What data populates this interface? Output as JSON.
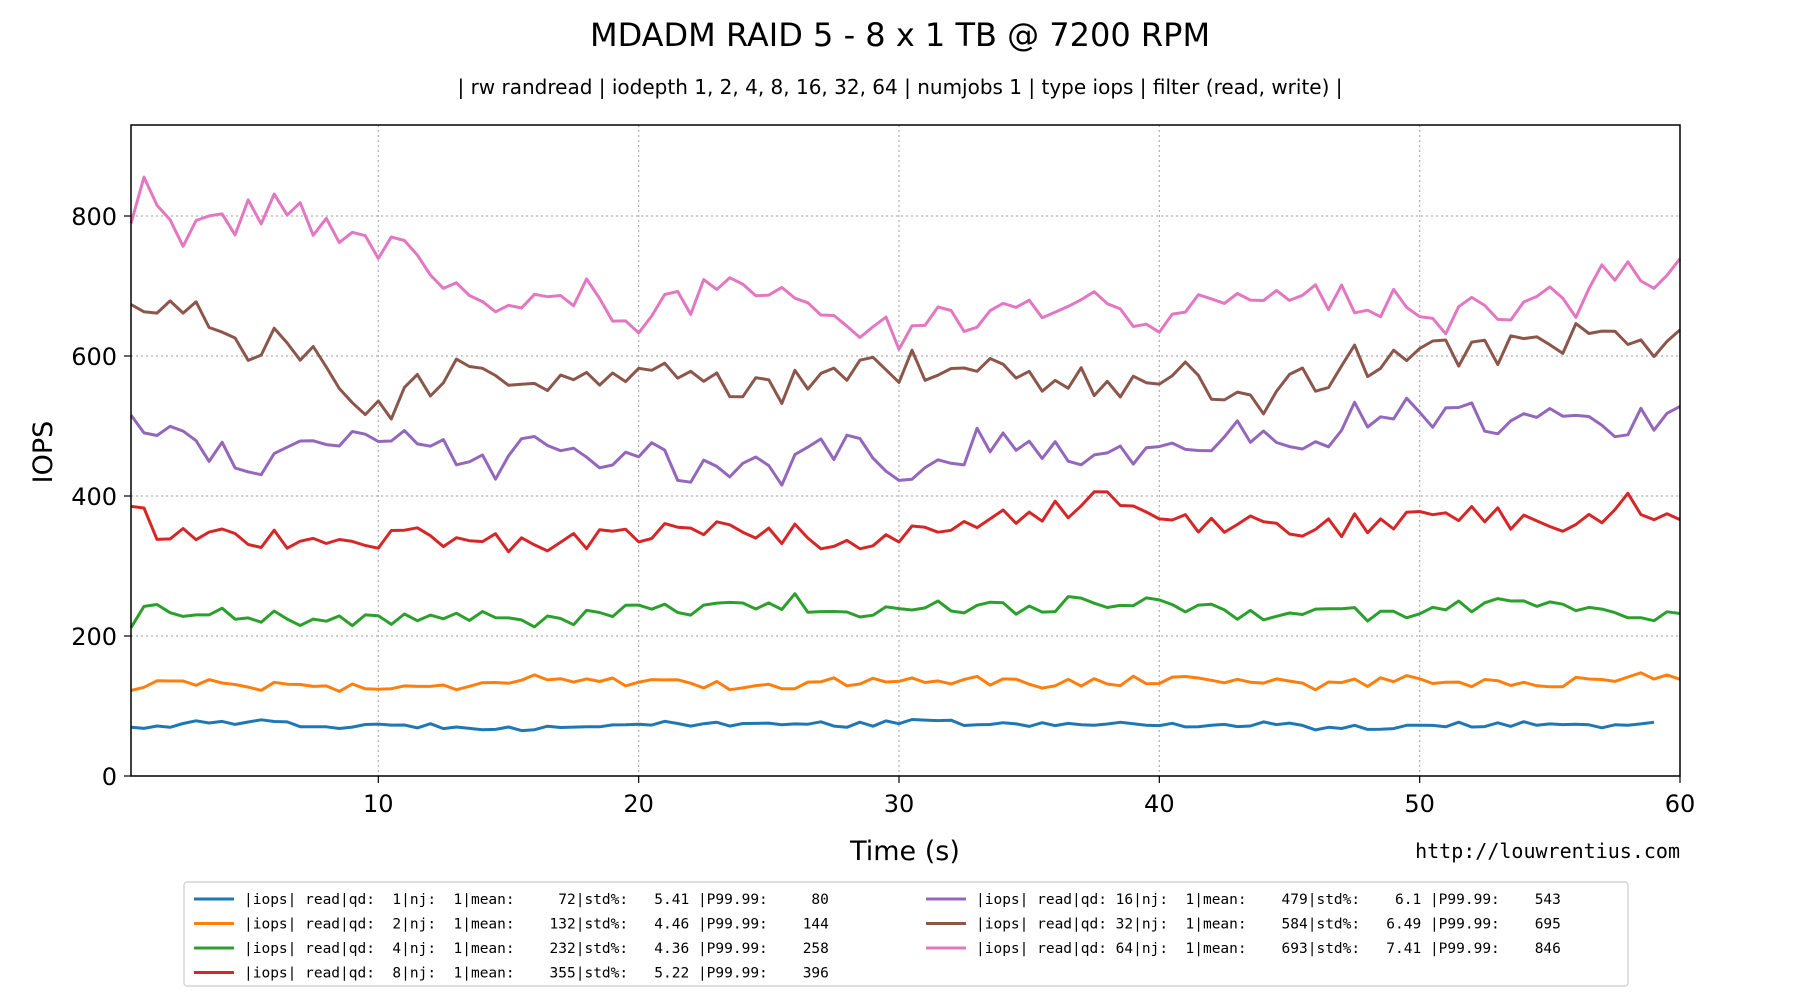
{
  "chart_data": {
    "type": "line",
    "title": "MDADM RAID 5 - 8 x 1 TB @ 7200 RPM",
    "subtitle": "| rw randread | iodepth 1, 2, 4, 8, 16, 32, 64 | numjobs 1 | type iops | filter (read, write) |",
    "xlabel": "Time (s)",
    "ylabel": "IOPS",
    "credit": "http://louwrentius.com",
    "xlim": [
      0.5,
      60
    ],
    "ylim": [
      0,
      930
    ],
    "xticks": [
      10,
      20,
      30,
      40,
      50,
      60
    ],
    "xtick_labels": [
      "10",
      "20",
      "30",
      "40",
      "50",
      "60"
    ],
    "yticks": [
      0,
      200,
      400,
      600,
      800
    ],
    "ytick_labels": [
      "0",
      "200",
      "400",
      "600",
      "800"
    ],
    "grid": true,
    "legend_position": "below",
    "series": [
      {
        "name": "qd1",
        "color": "#1f77b4",
        "legend": "|iops| read|qd:  1|nj:  1|mean:     72|std%:   5.41 |P99.99:     80",
        "anchors": [
          [
            0.5,
            70
          ],
          [
            3,
            75
          ],
          [
            5,
            78
          ],
          [
            8,
            70
          ],
          [
            12,
            72
          ],
          [
            16,
            68
          ],
          [
            20,
            75
          ],
          [
            24,
            72
          ],
          [
            26,
            78
          ],
          [
            28,
            72
          ],
          [
            31,
            78
          ],
          [
            35,
            72
          ],
          [
            38,
            75
          ],
          [
            42,
            72
          ],
          [
            44,
            76
          ],
          [
            46,
            68
          ],
          [
            50,
            72
          ],
          [
            54,
            75
          ],
          [
            57,
            72
          ],
          [
            59.3,
            78
          ]
        ],
        "amp": 4
      },
      {
        "name": "qd2",
        "color": "#ff7f0e",
        "legend": "|iops| read|qd:  2|nj:  1|mean:    132|std%:   4.46 |P99.99:    144",
        "anchors": [
          [
            0.5,
            122
          ],
          [
            2,
            140
          ],
          [
            4,
            130
          ],
          [
            8,
            128
          ],
          [
            12,
            125
          ],
          [
            16,
            142
          ],
          [
            20,
            132
          ],
          [
            24,
            128
          ],
          [
            28,
            135
          ],
          [
            31,
            140
          ],
          [
            35,
            132
          ],
          [
            38,
            135
          ],
          [
            42,
            140
          ],
          [
            46,
            130
          ],
          [
            50,
            138
          ],
          [
            54,
            130
          ],
          [
            58,
            142
          ],
          [
            60,
            138
          ]
        ],
        "amp": 7
      },
      {
        "name": "qd4",
        "color": "#2ca02c",
        "legend": "|iops| read|qd:  4|nj:  1|mean:    232|std%:   4.36 |P99.99:    258",
        "anchors": [
          [
            0.5,
            210
          ],
          [
            1,
            238
          ],
          [
            4,
            235
          ],
          [
            8,
            220
          ],
          [
            12,
            228
          ],
          [
            16,
            222
          ],
          [
            20,
            235
          ],
          [
            24,
            240
          ],
          [
            26,
            250
          ],
          [
            28,
            225
          ],
          [
            30,
            245
          ],
          [
            34,
            240
          ],
          [
            38,
            250
          ],
          [
            42,
            235
          ],
          [
            46,
            232
          ],
          [
            50,
            230
          ],
          [
            52,
            245
          ],
          [
            56,
            245
          ],
          [
            58,
            222
          ],
          [
            60,
            230
          ]
        ],
        "amp": 11
      },
      {
        "name": "qd8",
        "color": "#d62728",
        "legend": "|iops| read|qd:  8|nj:  1|mean:    355|std%:   5.22 |P99.99:    396",
        "anchors": [
          [
            0.5,
            380
          ],
          [
            2,
            340
          ],
          [
            4,
            345
          ],
          [
            8,
            330
          ],
          [
            12,
            345
          ],
          [
            16,
            330
          ],
          [
            20,
            345
          ],
          [
            24,
            355
          ],
          [
            26,
            345
          ],
          [
            29,
            318
          ],
          [
            30,
            345
          ],
          [
            34,
            368
          ],
          [
            38,
            392
          ],
          [
            40,
            360
          ],
          [
            42,
            362
          ],
          [
            46,
            350
          ],
          [
            50,
            375
          ],
          [
            52,
            368
          ],
          [
            56,
            365
          ],
          [
            58,
            390
          ],
          [
            60,
            360
          ]
        ],
        "amp": 17
      },
      {
        "name": "qd16",
        "color": "#9467bd",
        "legend": "|iops| read|qd: 16|nj:  1|mean:    479|std%:    6.1 |P99.99:    543",
        "anchors": [
          [
            0.5,
            505
          ],
          [
            2,
            495
          ],
          [
            4,
            465
          ],
          [
            6,
            440
          ],
          [
            8,
            470
          ],
          [
            12,
            480
          ],
          [
            14,
            440
          ],
          [
            16,
            465
          ],
          [
            20,
            458
          ],
          [
            23,
            430
          ],
          [
            26,
            440
          ],
          [
            28,
            480
          ],
          [
            31,
            420
          ],
          [
            33,
            475
          ],
          [
            36,
            468
          ],
          [
            38,
            450
          ],
          [
            40,
            470
          ],
          [
            42,
            470
          ],
          [
            44,
            498
          ],
          [
            46,
            485
          ],
          [
            48,
            520
          ],
          [
            50,
            515
          ],
          [
            52,
            510
          ],
          [
            56,
            512
          ],
          [
            58,
            505
          ],
          [
            60,
            515
          ]
        ],
        "amp": 24
      },
      {
        "name": "qd32",
        "color": "#8c564b",
        "legend": "|iops| read|qd: 32|nj:  1|mean:    584|std%:   6.49 |P99.99:    695",
        "anchors": [
          [
            0.5,
            658
          ],
          [
            3,
            672
          ],
          [
            4,
            620
          ],
          [
            6,
            615
          ],
          [
            8,
            580
          ],
          [
            10,
            510
          ],
          [
            12,
            560
          ],
          [
            14,
            590
          ],
          [
            16,
            570
          ],
          [
            20,
            570
          ],
          [
            22,
            575
          ],
          [
            24,
            555
          ],
          [
            26,
            560
          ],
          [
            28,
            565
          ],
          [
            30,
            585
          ],
          [
            32,
            575
          ],
          [
            35,
            565
          ],
          [
            38,
            560
          ],
          [
            40,
            570
          ],
          [
            42,
            560
          ],
          [
            44,
            540
          ],
          [
            46,
            570
          ],
          [
            48,
            595
          ],
          [
            50,
            605
          ],
          [
            52,
            595
          ],
          [
            54,
            620
          ],
          [
            56,
            630
          ],
          [
            60,
            618
          ]
        ],
        "amp": 27
      },
      {
        "name": "qd64",
        "color": "#e377c2",
        "legend": "|iops| read|qd: 64|nj:  1|mean:    693|std%:   7.41 |P99.99:    846",
        "anchors": [
          [
            0.5,
            770
          ],
          [
            1,
            838
          ],
          [
            2,
            775
          ],
          [
            4,
            788
          ],
          [
            6,
            805
          ],
          [
            8,
            792
          ],
          [
            10,
            745
          ],
          [
            12,
            740
          ],
          [
            14,
            660
          ],
          [
            16,
            675
          ],
          [
            18,
            690
          ],
          [
            20,
            660
          ],
          [
            22,
            685
          ],
          [
            24,
            690
          ],
          [
            26,
            665
          ],
          [
            28,
            650
          ],
          [
            30,
            635
          ],
          [
            32,
            650
          ],
          [
            34,
            655
          ],
          [
            36,
            670
          ],
          [
            38,
            680
          ],
          [
            40,
            655
          ],
          [
            42,
            665
          ],
          [
            44,
            665
          ],
          [
            46,
            680
          ],
          [
            48,
            690
          ],
          [
            50,
            650
          ],
          [
            52,
            660
          ],
          [
            54,
            675
          ],
          [
            56,
            680
          ],
          [
            58,
            730
          ],
          [
            60,
            715
          ]
        ],
        "amp": 27
      }
    ]
  }
}
